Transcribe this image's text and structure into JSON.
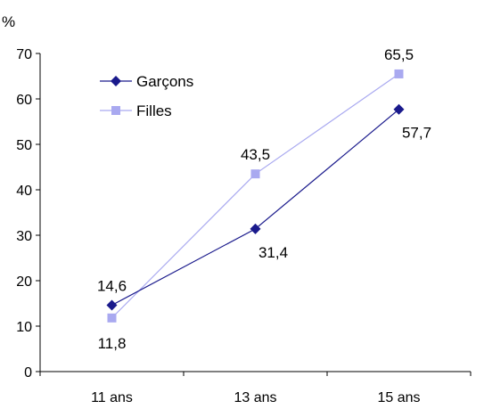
{
  "chart_data": {
    "type": "line",
    "ylabel": "%",
    "categories": [
      "11 ans",
      "13 ans",
      "15 ans"
    ],
    "ylim": [
      0,
      70
    ],
    "yticks": [
      0,
      10,
      20,
      30,
      40,
      50,
      60,
      70
    ],
    "grid": false,
    "legend_position": "top-left",
    "series": [
      {
        "name": "Garçons",
        "values": [
          14.6,
          31.4,
          57.7
        ],
        "value_labels": [
          "14,6",
          "31,4",
          "57,7"
        ],
        "color": "#1a1a8c",
        "marker": "diamond"
      },
      {
        "name": "Filles",
        "values": [
          11.8,
          43.5,
          65.5
        ],
        "value_labels": [
          "11,8",
          "43,5",
          "65,5"
        ],
        "color": "#a9a9f0",
        "marker": "square"
      }
    ]
  }
}
